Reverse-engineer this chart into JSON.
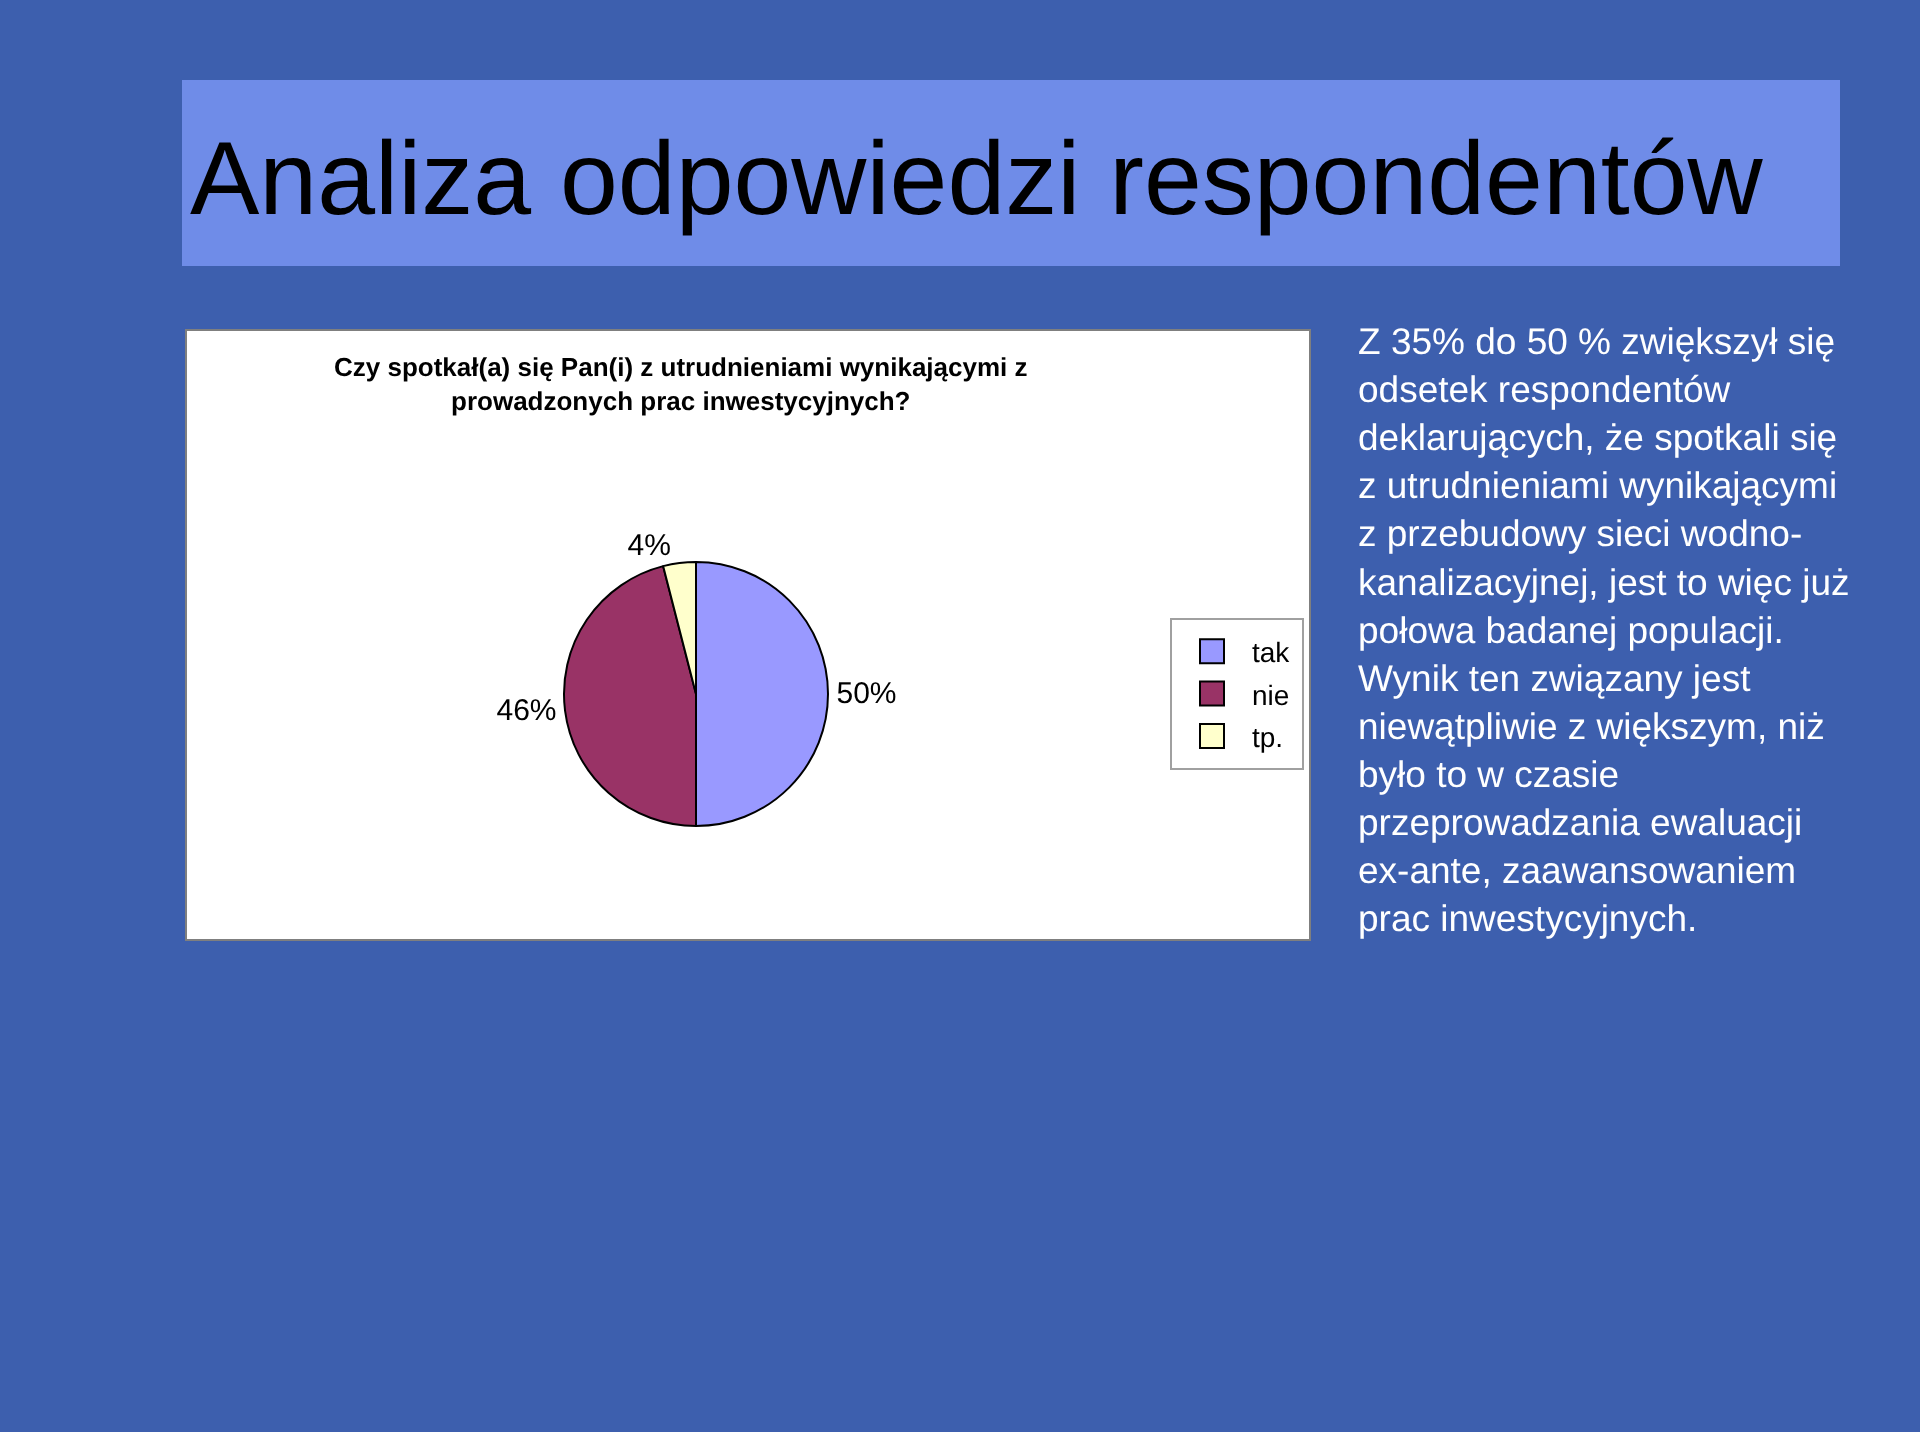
{
  "chart_data": {
    "type": "pie",
    "title": "Analiza odpowiedzi respondentów",
    "subtitle": "Czy spotkał(a) się Pan(i) z utrudnieniami wynikającymi z\nprowadzonych prac inwestycyjnych?",
    "categories": [
      "tak",
      "nie",
      "tp."
    ],
    "values": [
      50,
      46,
      4
    ],
    "colors": [
      "#9999ff",
      "#993366",
      "#ffffcc"
    ],
    "value_labels": [
      "50%",
      "46%",
      "4%"
    ],
    "legend": "right",
    "annotations": [
      "Z 35% do 50 % zwiększył się\nodsetek respondentów\ndeklarujących, że spotkali się\nz utrudnieniami wynikającymi\nz przebudowy sieci wodno-\nkanalizacyjnej, jest to więc już\npołowa badanej populacji.\nWynik ten związany jest\nniewątpliwie z większym, niż\nbyło to w czasie\nprzeprowadzania ewaluacji\nex-ante, zaawansowaniem\nprac inwestycyjnych."
    ]
  }
}
